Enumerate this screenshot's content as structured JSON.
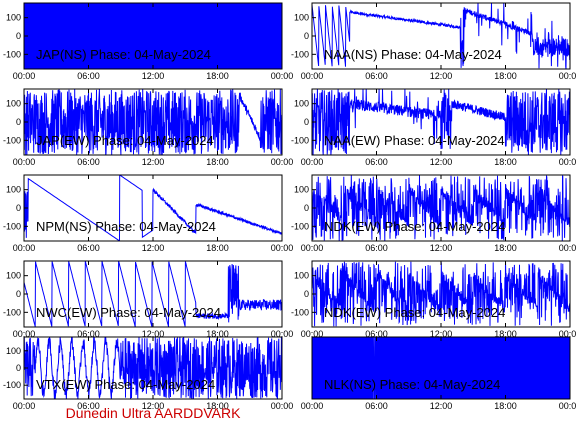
{
  "footer": "Dunedin Ultra AARDDVARK",
  "chart_data": [
    {
      "type": "line",
      "title": "JAP(NS) Phase: 04-May-2024",
      "x_ticks": [
        "00:00",
        "06:00",
        "12:00",
        "18:00",
        "00:00"
      ],
      "y_ticks": [
        100,
        0,
        -100
      ],
      "ylim": [
        -180,
        180
      ],
      "xlim_hours": [
        0,
        24
      ],
      "color": "#0000ff",
      "pattern": "solid"
    },
    {
      "type": "line",
      "title": "NAA(NS) Phase: 04-May-2024",
      "x_ticks": [
        "00:00",
        "06:00",
        "12:00",
        "18:00",
        "00:00"
      ],
      "y_ticks": [
        100,
        0,
        -100
      ],
      "ylim": [
        -180,
        180
      ],
      "xlim_hours": [
        0,
        24
      ],
      "color": "#0000ff",
      "pattern": "naa-ns"
    },
    {
      "type": "line",
      "title": "JAP(EW) Phase: 04-May-2024",
      "x_ticks": [
        "00:00",
        "06:00",
        "12:00",
        "18:00",
        "00:00"
      ],
      "y_ticks": [
        100,
        0,
        -100
      ],
      "ylim": [
        -180,
        180
      ],
      "xlim_hours": [
        0,
        24
      ],
      "color": "#0000ff",
      "pattern": "noisy-dense"
    },
    {
      "type": "line",
      "title": "NAA(EW) Phase: 04-May-2024",
      "x_ticks": [
        "00:00",
        "06:00",
        "12:00",
        "18:00",
        "00:00"
      ],
      "y_ticks": [
        100,
        0,
        -100
      ],
      "ylim": [
        -180,
        180
      ],
      "xlim_hours": [
        0,
        24
      ],
      "color": "#0000ff",
      "pattern": "naa-ew"
    },
    {
      "type": "line",
      "title": "NPM(NS) Phase: 04-May-2024",
      "x_ticks": [
        "00:00",
        "06:00",
        "12:00",
        "18:00",
        "00:00"
      ],
      "y_ticks": [
        100,
        0,
        -100
      ],
      "ylim": [
        -180,
        180
      ],
      "xlim_hours": [
        0,
        24
      ],
      "color": "#0000ff",
      "pattern": "npm"
    },
    {
      "type": "line",
      "title": "NDK(EW) Phase: 04-May-2024",
      "x_ticks": [
        "00:00",
        "06:00",
        "12:00",
        "18:00",
        "00:00"
      ],
      "y_ticks": [
        100,
        0,
        -100
      ],
      "ylim": [
        -180,
        180
      ],
      "xlim_hours": [
        0,
        24
      ],
      "color": "#0000ff",
      "pattern": "noisy"
    },
    {
      "type": "line",
      "title": "NWC(EW) Phase: 04-May-2024",
      "x_ticks": [
        "00:00",
        "06:00",
        "12:00",
        "18:00",
        "00:00"
      ],
      "y_ticks": [
        100,
        0,
        -100
      ],
      "ylim": [
        -180,
        180
      ],
      "xlim_hours": [
        0,
        24
      ],
      "color": "#0000ff",
      "pattern": "nwc"
    },
    {
      "type": "line",
      "title": "NDK(EW) Phase: 04-May-2024",
      "x_ticks": [
        "00:00",
        "06:00",
        "12:00",
        "18:00",
        "00:00"
      ],
      "y_ticks": [
        100,
        0,
        -100
      ],
      "ylim": [
        -180,
        180
      ],
      "xlim_hours": [
        0,
        24
      ],
      "color": "#0000ff",
      "pattern": "noisy"
    },
    {
      "type": "line",
      "title": "VTX(EW) Phase: 04-May-2024",
      "x_ticks": [
        "00:00",
        "06:00",
        "12:00",
        "18:00",
        "00:00"
      ],
      "y_ticks": [
        100,
        0,
        -100
      ],
      "ylim": [
        -180,
        180
      ],
      "xlim_hours": [
        0,
        24
      ],
      "color": "#0000ff",
      "pattern": "vtx"
    },
    {
      "type": "line",
      "title": "NLK(NS) Phase: 04-May-2024",
      "x_ticks": [
        "00:00",
        "06:00",
        "12:00",
        "18:00",
        "00:00"
      ],
      "y_ticks": [],
      "ylim": [
        -180,
        180
      ],
      "xlim_hours": [
        0,
        24
      ],
      "color": "#0000ff",
      "pattern": "solid-sparse"
    }
  ]
}
